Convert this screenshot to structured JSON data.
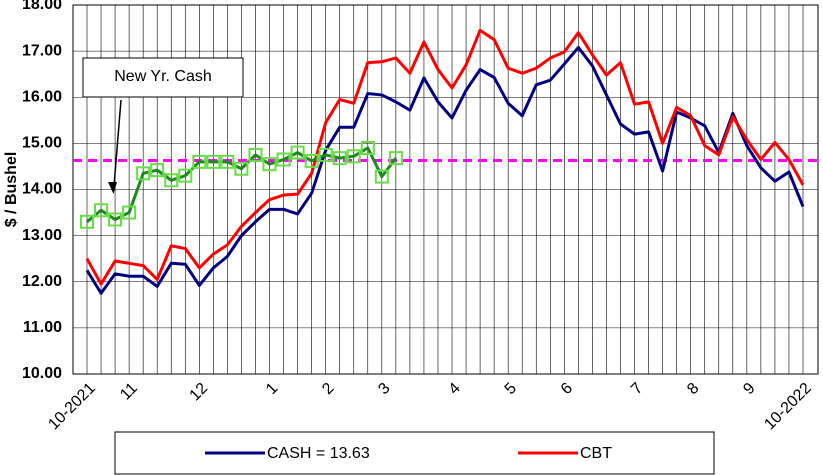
{
  "chart_data": {
    "type": "line",
    "y_label": "$ / Bushel",
    "annotation": "New Yr. Cash",
    "categories": [
      "10-2021",
      null,
      null,
      "11",
      null,
      null,
      null,
      null,
      "12",
      null,
      null,
      null,
      null,
      "1",
      null,
      null,
      null,
      "2",
      null,
      null,
      null,
      "3",
      null,
      null,
      null,
      null,
      "4",
      null,
      null,
      null,
      "5",
      null,
      null,
      null,
      "6",
      null,
      null,
      null,
      null,
      "7",
      null,
      null,
      null,
      "8",
      null,
      null,
      null,
      "9",
      null,
      null,
      null,
      "10-2022"
    ],
    "series": [
      {
        "name": "CASH = 13.63",
        "color": "#000080",
        "values": [
          12.25,
          11.75,
          12.17,
          12.12,
          12.12,
          11.9,
          12.4,
          12.38,
          11.92,
          12.3,
          12.55,
          13.0,
          13.3,
          13.57,
          13.57,
          13.47,
          13.92,
          14.85,
          15.35,
          15.35,
          16.08,
          16.05,
          15.9,
          15.72,
          16.42,
          15.9,
          15.55,
          16.15,
          16.6,
          16.43,
          15.87,
          15.6,
          16.27,
          16.37,
          16.72,
          17.08,
          16.68,
          16.05,
          15.42,
          15.2,
          15.25,
          14.4,
          15.68,
          15.55,
          15.38,
          14.8,
          15.65,
          14.95,
          14.47,
          14.18,
          14.38,
          13.63
        ]
      },
      {
        "name": "CBT",
        "color": "#ff0000",
        "values": [
          12.5,
          11.95,
          12.45,
          12.4,
          12.35,
          12.05,
          12.78,
          12.72,
          12.3,
          12.6,
          12.8,
          13.2,
          13.5,
          13.78,
          13.88,
          13.9,
          14.35,
          15.45,
          15.95,
          15.87,
          16.75,
          16.77,
          16.85,
          16.52,
          17.2,
          16.6,
          16.2,
          16.7,
          17.45,
          17.25,
          16.63,
          16.52,
          16.63,
          16.85,
          16.98,
          17.4,
          16.92,
          16.48,
          16.75,
          15.85,
          15.9,
          15.0,
          15.78,
          15.6,
          14.95,
          14.75,
          15.58,
          15.08,
          14.65,
          15.02,
          14.65,
          14.1
        ]
      },
      {
        "color": "#1a8a1a",
        "marker_color": "#66dd44",
        "values": [
          13.3,
          13.55,
          13.35,
          13.5,
          14.35,
          14.42,
          14.2,
          14.3,
          14.6,
          14.6,
          14.6,
          14.45,
          14.75,
          14.55,
          14.65,
          14.8,
          14.62,
          14.75,
          14.68,
          14.72,
          14.9,
          14.28,
          14.68,
          null,
          null,
          null,
          null,
          null,
          null,
          null,
          null,
          null,
          null,
          null,
          null,
          null,
          null,
          null,
          null,
          null,
          null,
          null,
          null,
          null,
          null,
          null,
          null,
          null,
          null,
          null,
          null,
          null
        ]
      }
    ],
    "reference_line": {
      "value": 14.63,
      "color": "#ff00ff"
    },
    "ylim": [
      10,
      18
    ],
    "yticks": [
      {
        "value": 10,
        "label": "10.00"
      },
      {
        "value": 11,
        "label": "11.00"
      },
      {
        "value": 12,
        "label": "12.00"
      },
      {
        "value": 13,
        "label": "13.00"
      },
      {
        "value": 14,
        "label": "14.00"
      },
      {
        "value": 15,
        "label": "15.00"
      },
      {
        "value": 16,
        "label": "16.00"
      },
      {
        "value": 17,
        "label": "17.00"
      },
      {
        "value": 18,
        "label": "18.00"
      }
    ],
    "grid": true
  }
}
